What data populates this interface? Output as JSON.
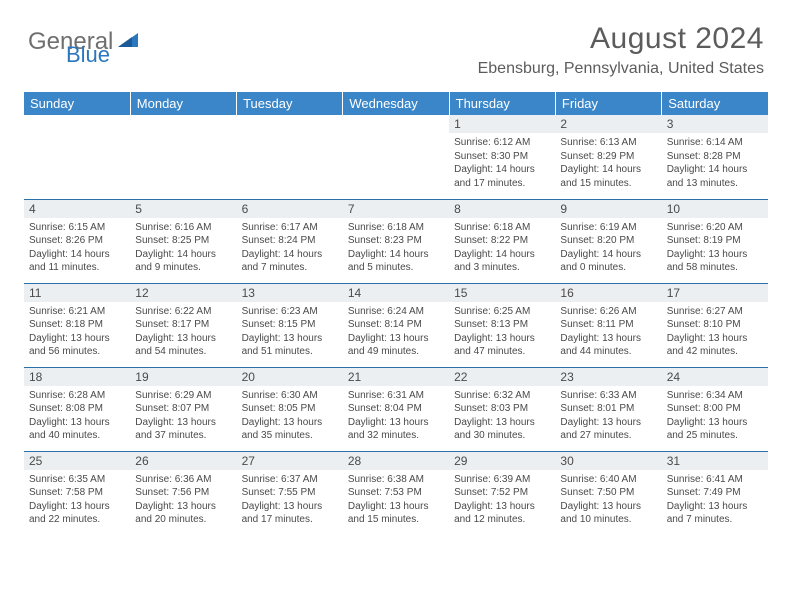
{
  "logo": {
    "text1": "General",
    "text2": "Blue"
  },
  "title": "August 2024",
  "location": "Ebensburg, Pennsylvania, United States",
  "colors": {
    "header_bg": "#3a86c8",
    "daynum_bg": "#eceff1",
    "row_border": "#2b6fa8",
    "logo_gray": "#6f6f6f",
    "logo_blue": "#2b77bd",
    "text": "#5c5c5c"
  },
  "weekdays": [
    "Sunday",
    "Monday",
    "Tuesday",
    "Wednesday",
    "Thursday",
    "Friday",
    "Saturday"
  ],
  "weeks": [
    [
      null,
      null,
      null,
      null,
      {
        "n": "1",
        "sr": "Sunrise: 6:12 AM",
        "ss": "Sunset: 8:30 PM",
        "dl": "Daylight: 14 hours and 17 minutes."
      },
      {
        "n": "2",
        "sr": "Sunrise: 6:13 AM",
        "ss": "Sunset: 8:29 PM",
        "dl": "Daylight: 14 hours and 15 minutes."
      },
      {
        "n": "3",
        "sr": "Sunrise: 6:14 AM",
        "ss": "Sunset: 8:28 PM",
        "dl": "Daylight: 14 hours and 13 minutes."
      }
    ],
    [
      {
        "n": "4",
        "sr": "Sunrise: 6:15 AM",
        "ss": "Sunset: 8:26 PM",
        "dl": "Daylight: 14 hours and 11 minutes."
      },
      {
        "n": "5",
        "sr": "Sunrise: 6:16 AM",
        "ss": "Sunset: 8:25 PM",
        "dl": "Daylight: 14 hours and 9 minutes."
      },
      {
        "n": "6",
        "sr": "Sunrise: 6:17 AM",
        "ss": "Sunset: 8:24 PM",
        "dl": "Daylight: 14 hours and 7 minutes."
      },
      {
        "n": "7",
        "sr": "Sunrise: 6:18 AM",
        "ss": "Sunset: 8:23 PM",
        "dl": "Daylight: 14 hours and 5 minutes."
      },
      {
        "n": "8",
        "sr": "Sunrise: 6:18 AM",
        "ss": "Sunset: 8:22 PM",
        "dl": "Daylight: 14 hours and 3 minutes."
      },
      {
        "n": "9",
        "sr": "Sunrise: 6:19 AM",
        "ss": "Sunset: 8:20 PM",
        "dl": "Daylight: 14 hours and 0 minutes."
      },
      {
        "n": "10",
        "sr": "Sunrise: 6:20 AM",
        "ss": "Sunset: 8:19 PM",
        "dl": "Daylight: 13 hours and 58 minutes."
      }
    ],
    [
      {
        "n": "11",
        "sr": "Sunrise: 6:21 AM",
        "ss": "Sunset: 8:18 PM",
        "dl": "Daylight: 13 hours and 56 minutes."
      },
      {
        "n": "12",
        "sr": "Sunrise: 6:22 AM",
        "ss": "Sunset: 8:17 PM",
        "dl": "Daylight: 13 hours and 54 minutes."
      },
      {
        "n": "13",
        "sr": "Sunrise: 6:23 AM",
        "ss": "Sunset: 8:15 PM",
        "dl": "Daylight: 13 hours and 51 minutes."
      },
      {
        "n": "14",
        "sr": "Sunrise: 6:24 AM",
        "ss": "Sunset: 8:14 PM",
        "dl": "Daylight: 13 hours and 49 minutes."
      },
      {
        "n": "15",
        "sr": "Sunrise: 6:25 AM",
        "ss": "Sunset: 8:13 PM",
        "dl": "Daylight: 13 hours and 47 minutes."
      },
      {
        "n": "16",
        "sr": "Sunrise: 6:26 AM",
        "ss": "Sunset: 8:11 PM",
        "dl": "Daylight: 13 hours and 44 minutes."
      },
      {
        "n": "17",
        "sr": "Sunrise: 6:27 AM",
        "ss": "Sunset: 8:10 PM",
        "dl": "Daylight: 13 hours and 42 minutes."
      }
    ],
    [
      {
        "n": "18",
        "sr": "Sunrise: 6:28 AM",
        "ss": "Sunset: 8:08 PM",
        "dl": "Daylight: 13 hours and 40 minutes."
      },
      {
        "n": "19",
        "sr": "Sunrise: 6:29 AM",
        "ss": "Sunset: 8:07 PM",
        "dl": "Daylight: 13 hours and 37 minutes."
      },
      {
        "n": "20",
        "sr": "Sunrise: 6:30 AM",
        "ss": "Sunset: 8:05 PM",
        "dl": "Daylight: 13 hours and 35 minutes."
      },
      {
        "n": "21",
        "sr": "Sunrise: 6:31 AM",
        "ss": "Sunset: 8:04 PM",
        "dl": "Daylight: 13 hours and 32 minutes."
      },
      {
        "n": "22",
        "sr": "Sunrise: 6:32 AM",
        "ss": "Sunset: 8:03 PM",
        "dl": "Daylight: 13 hours and 30 minutes."
      },
      {
        "n": "23",
        "sr": "Sunrise: 6:33 AM",
        "ss": "Sunset: 8:01 PM",
        "dl": "Daylight: 13 hours and 27 minutes."
      },
      {
        "n": "24",
        "sr": "Sunrise: 6:34 AM",
        "ss": "Sunset: 8:00 PM",
        "dl": "Daylight: 13 hours and 25 minutes."
      }
    ],
    [
      {
        "n": "25",
        "sr": "Sunrise: 6:35 AM",
        "ss": "Sunset: 7:58 PM",
        "dl": "Daylight: 13 hours and 22 minutes."
      },
      {
        "n": "26",
        "sr": "Sunrise: 6:36 AM",
        "ss": "Sunset: 7:56 PM",
        "dl": "Daylight: 13 hours and 20 minutes."
      },
      {
        "n": "27",
        "sr": "Sunrise: 6:37 AM",
        "ss": "Sunset: 7:55 PM",
        "dl": "Daylight: 13 hours and 17 minutes."
      },
      {
        "n": "28",
        "sr": "Sunrise: 6:38 AM",
        "ss": "Sunset: 7:53 PM",
        "dl": "Daylight: 13 hours and 15 minutes."
      },
      {
        "n": "29",
        "sr": "Sunrise: 6:39 AM",
        "ss": "Sunset: 7:52 PM",
        "dl": "Daylight: 13 hours and 12 minutes."
      },
      {
        "n": "30",
        "sr": "Sunrise: 6:40 AM",
        "ss": "Sunset: 7:50 PM",
        "dl": "Daylight: 13 hours and 10 minutes."
      },
      {
        "n": "31",
        "sr": "Sunrise: 6:41 AM",
        "ss": "Sunset: 7:49 PM",
        "dl": "Daylight: 13 hours and 7 minutes."
      }
    ]
  ]
}
